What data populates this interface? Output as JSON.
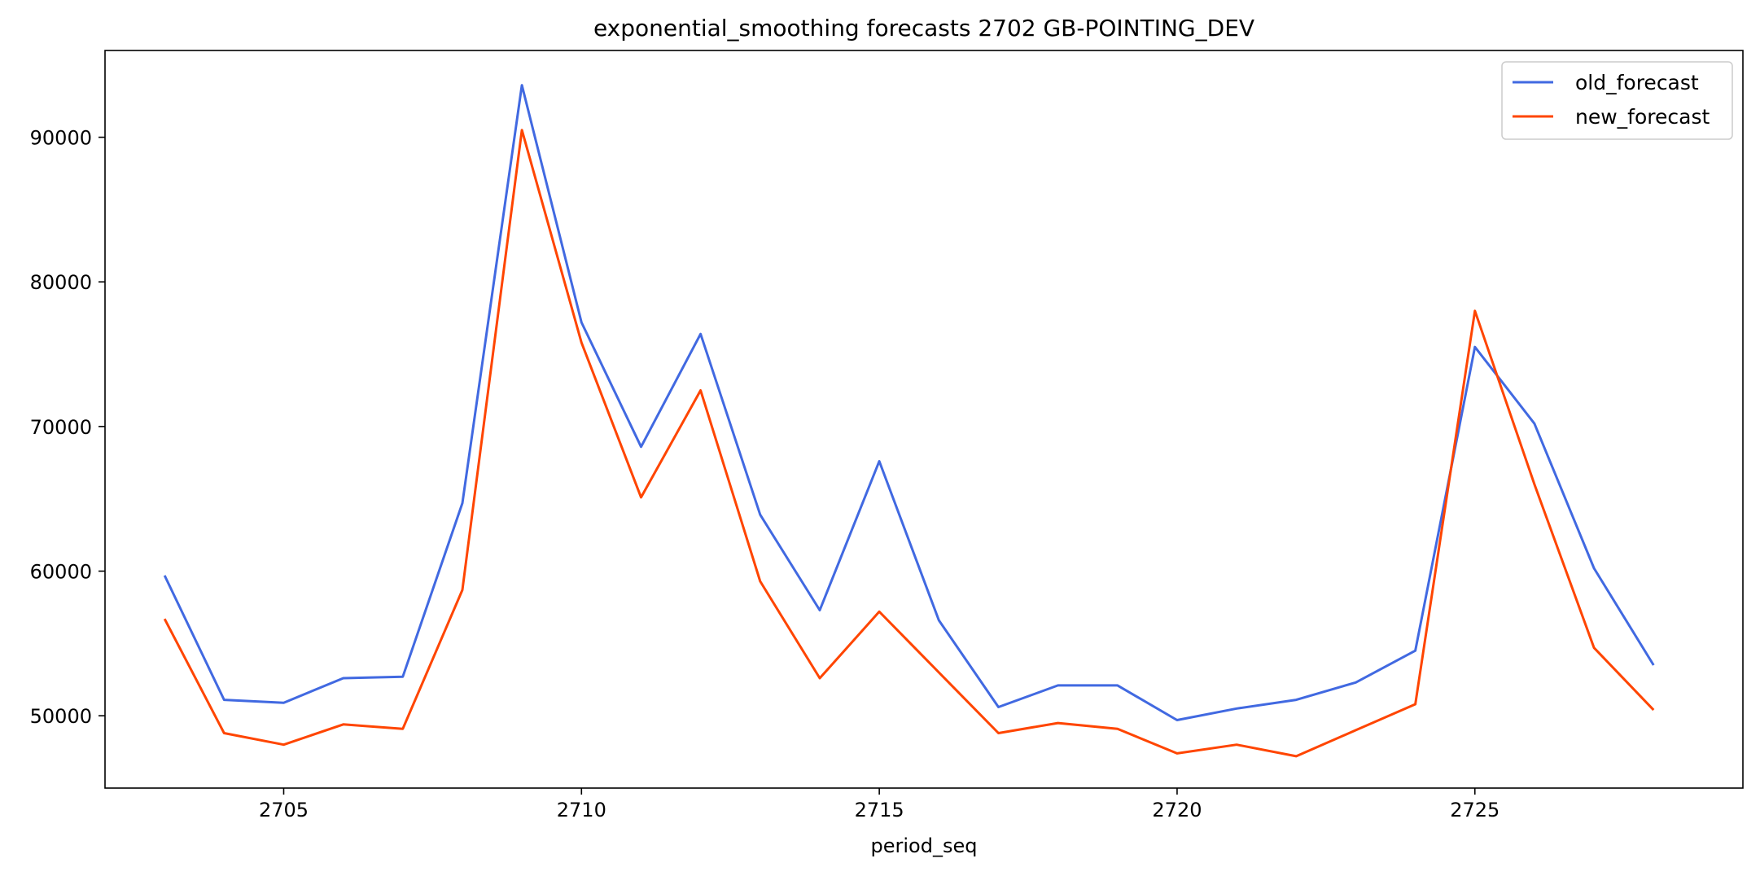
{
  "chart_data": {
    "type": "line",
    "title": "exponential_smoothing forecasts 2702 GB-POINTING_DEV",
    "xlabel": "period_seq",
    "ylabel": "",
    "x": [
      2703,
      2704,
      2705,
      2706,
      2707,
      2708,
      2709,
      2710,
      2711,
      2712,
      2713,
      2714,
      2715,
      2716,
      2717,
      2718,
      2719,
      2720,
      2721,
      2722,
      2723,
      2724,
      2725,
      2726,
      2727,
      2728
    ],
    "xlim": [
      2702,
      2729.5
    ],
    "ylim": [
      45000,
      96000
    ],
    "xticks": [
      2705,
      2710,
      2715,
      2720,
      2725
    ],
    "yticks": [
      50000,
      60000,
      70000,
      80000,
      90000
    ],
    "grid": false,
    "legend_position": "top-right",
    "series": [
      {
        "name": "old_forecast",
        "color": "#4169E1",
        "values": [
          59700,
          51100,
          50900,
          52600,
          52700,
          64700,
          93600,
          77200,
          68600,
          76400,
          63900,
          57300,
          67600,
          56600,
          50600,
          52100,
          52100,
          49700,
          50500,
          51100,
          52300,
          54500,
          75500,
          70200,
          60200,
          53500
        ]
      },
      {
        "name": "new_forecast",
        "color": "#FF4500",
        "values": [
          56700,
          48800,
          48000,
          49400,
          49100,
          58700,
          90500,
          75800,
          65100,
          72500,
          59300,
          52600,
          57200,
          53000,
          48800,
          49500,
          49100,
          47400,
          48000,
          47200,
          49000,
          50800,
          78000,
          66000,
          54700,
          50400
        ]
      }
    ]
  }
}
